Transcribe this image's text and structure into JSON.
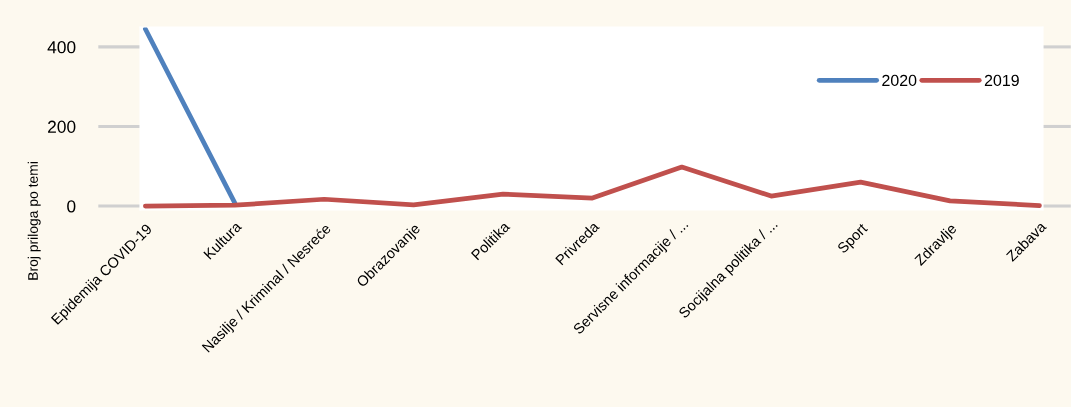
{
  "chart_data": {
    "type": "line",
    "ylabel": "Broj priloga po temi",
    "categories": [
      "Epidemija COVID-19",
      "Kultura",
      "Nasilje / Kriminal / Nesreće",
      "Obrazovanje",
      "Politika",
      "Privreda",
      "Servisne informacije / ...",
      "Socijalna politika / ...",
      "Sport",
      "Zdravlje",
      "Zabava"
    ],
    "series": [
      {
        "name": "2020",
        "color": "#4f81bd",
        "values": [
          445,
          8,
          null,
          null,
          null,
          null,
          null,
          null,
          null,
          null,
          null
        ]
      },
      {
        "name": "2019",
        "color": "#c0504d",
        "values": [
          0,
          2,
          17,
          3,
          30,
          20,
          98,
          25,
          60,
          13,
          1
        ]
      }
    ],
    "ylim": [
      -10,
      450
    ],
    "yticks": [
      0,
      200,
      400
    ],
    "legend": "top right",
    "line_style": "solid"
  }
}
